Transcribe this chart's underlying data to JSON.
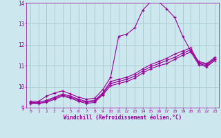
{
  "xlabel": "Windchill (Refroidissement éolien,°C)",
  "xlim": [
    -0.5,
    23.5
  ],
  "ylim": [
    9,
    14
  ],
  "xticks": [
    0,
    1,
    2,
    3,
    4,
    5,
    6,
    7,
    8,
    9,
    10,
    11,
    12,
    13,
    14,
    15,
    16,
    17,
    18,
    19,
    20,
    21,
    22,
    23
  ],
  "yticks": [
    9,
    10,
    11,
    12,
    13,
    14
  ],
  "bg_color": "#cce8ee",
  "grid_color": "#aaccd4",
  "line_color": "#990099",
  "line1_x": [
    0,
    1,
    2,
    3,
    4,
    5,
    6,
    7,
    8,
    9,
    10,
    11,
    12,
    13,
    14,
    15,
    16,
    17,
    18,
    19,
    20,
    21,
    22,
    23
  ],
  "line1_y": [
    9.3,
    9.3,
    9.55,
    9.7,
    9.8,
    9.65,
    9.5,
    9.4,
    9.45,
    9.85,
    10.45,
    12.4,
    12.5,
    12.8,
    13.65,
    14.05,
    14.05,
    13.7,
    13.3,
    12.4,
    11.7,
    11.2,
    11.1,
    11.4
  ],
  "line2_x": [
    0,
    1,
    2,
    3,
    4,
    5,
    6,
    7,
    8,
    9,
    10,
    11,
    12,
    13,
    14,
    15,
    16,
    17,
    18,
    19,
    20,
    21,
    22,
    23
  ],
  "line2_y": [
    9.25,
    9.25,
    9.35,
    9.5,
    9.65,
    9.55,
    9.4,
    9.3,
    9.35,
    9.7,
    10.25,
    10.35,
    10.45,
    10.6,
    10.85,
    11.05,
    11.2,
    11.35,
    11.55,
    11.7,
    11.85,
    11.15,
    11.05,
    11.35
  ],
  "line3_x": [
    0,
    1,
    2,
    3,
    4,
    5,
    6,
    7,
    8,
    9,
    10,
    11,
    12,
    13,
    14,
    15,
    16,
    17,
    18,
    19,
    20,
    21,
    22,
    23
  ],
  "line3_y": [
    9.2,
    9.2,
    9.3,
    9.45,
    9.6,
    9.5,
    9.35,
    9.25,
    9.3,
    9.65,
    10.15,
    10.25,
    10.35,
    10.5,
    10.75,
    10.95,
    11.1,
    11.25,
    11.4,
    11.6,
    11.75,
    11.1,
    11.0,
    11.3
  ],
  "line4_x": [
    0,
    1,
    2,
    3,
    4,
    5,
    6,
    7,
    8,
    9,
    10,
    11,
    12,
    13,
    14,
    15,
    16,
    17,
    18,
    19,
    20,
    21,
    22,
    23
  ],
  "line4_y": [
    9.2,
    9.2,
    9.25,
    9.4,
    9.55,
    9.45,
    9.3,
    9.2,
    9.25,
    9.6,
    10.05,
    10.15,
    10.25,
    10.4,
    10.65,
    10.85,
    11.0,
    11.1,
    11.3,
    11.5,
    11.65,
    11.05,
    10.95,
    11.25
  ]
}
